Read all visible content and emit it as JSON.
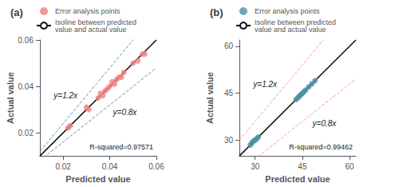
{
  "chart_data": [
    {
      "type": "scatter",
      "title": "(a)",
      "xlabel": "Predicted value",
      "ylabel": "Actual value",
      "xlim": [
        0.01,
        0.06
      ],
      "ylim": [
        0.01,
        0.06
      ],
      "xticks": [
        0.02,
        0.04,
        0.06
      ],
      "yticks": [
        0.02,
        0.04,
        0.06
      ],
      "grid": false,
      "legend": "top",
      "series": [
        {
          "name": "Error analysis points",
          "type": "scatter",
          "marker": "circle",
          "color": "#F08080",
          "x": [
            0.022,
            0.023,
            0.03,
            0.031,
            0.035,
            0.036,
            0.037,
            0.038,
            0.039,
            0.04,
            0.041,
            0.042,
            0.043,
            0.044,
            0.045,
            0.046,
            0.05,
            0.052,
            0.054,
            0.055
          ],
          "values": [
            0.022,
            0.023,
            0.031,
            0.03,
            0.035,
            0.037,
            0.036,
            0.038,
            0.039,
            0.04,
            0.042,
            0.041,
            0.043,
            0.044,
            0.044,
            0.046,
            0.05,
            0.051,
            0.054,
            0.054
          ]
        },
        {
          "name": "Isoline between predicted\nvalue and actual value",
          "type": "line",
          "line_style": "solid",
          "color": "#111111",
          "slope": 1
        }
      ],
      "reference_lines": [
        {
          "slope": 0.8,
          "label": "y=0.8x",
          "color": "#5599BB",
          "line_style": "dashed"
        },
        {
          "slope": 1.2,
          "label": "y=1.2x",
          "color": "#5599BB",
          "line_style": "dashed"
        }
      ],
      "annotations": [
        "R-squared=0.97571"
      ]
    },
    {
      "type": "scatter",
      "title": "(b)",
      "xlabel": "Predicted value",
      "ylabel": "Actual value",
      "xlim": [
        25,
        62
      ],
      "ylim": [
        25,
        62
      ],
      "xticks": [
        30,
        45,
        60
      ],
      "yticks": [
        30,
        45,
        60
      ],
      "grid": false,
      "legend": "top",
      "series": [
        {
          "name": "Error analysis points",
          "type": "scatter",
          "marker": "circle",
          "color": "#4A90A4",
          "x": [
            28.5,
            29.0,
            29.5,
            30.0,
            30.5,
            31.0,
            43.0,
            43.5,
            44.0,
            44.5,
            45.0,
            45.5,
            46.0,
            47.0,
            48.0,
            49.0
          ],
          "values": [
            28.5,
            29.2,
            29.8,
            30.0,
            30.5,
            31.0,
            43.0,
            43.5,
            44.0,
            44.5,
            45.0,
            45.5,
            46.0,
            47.0,
            48.0,
            49.0
          ]
        },
        {
          "name": "Isoline between predicted\nvalue and actual value",
          "type": "line",
          "line_style": "solid",
          "color": "#111111",
          "slope": 1
        }
      ],
      "reference_lines": [
        {
          "slope": 0.8,
          "label": "y=0.8x",
          "color": "#FF9999",
          "line_style": "dashed"
        },
        {
          "slope": 1.2,
          "label": "y=1.2x",
          "color": "#FF9999",
          "line_style": "dashed"
        }
      ],
      "annotations": [
        "R-squared=0.99462"
      ]
    }
  ]
}
